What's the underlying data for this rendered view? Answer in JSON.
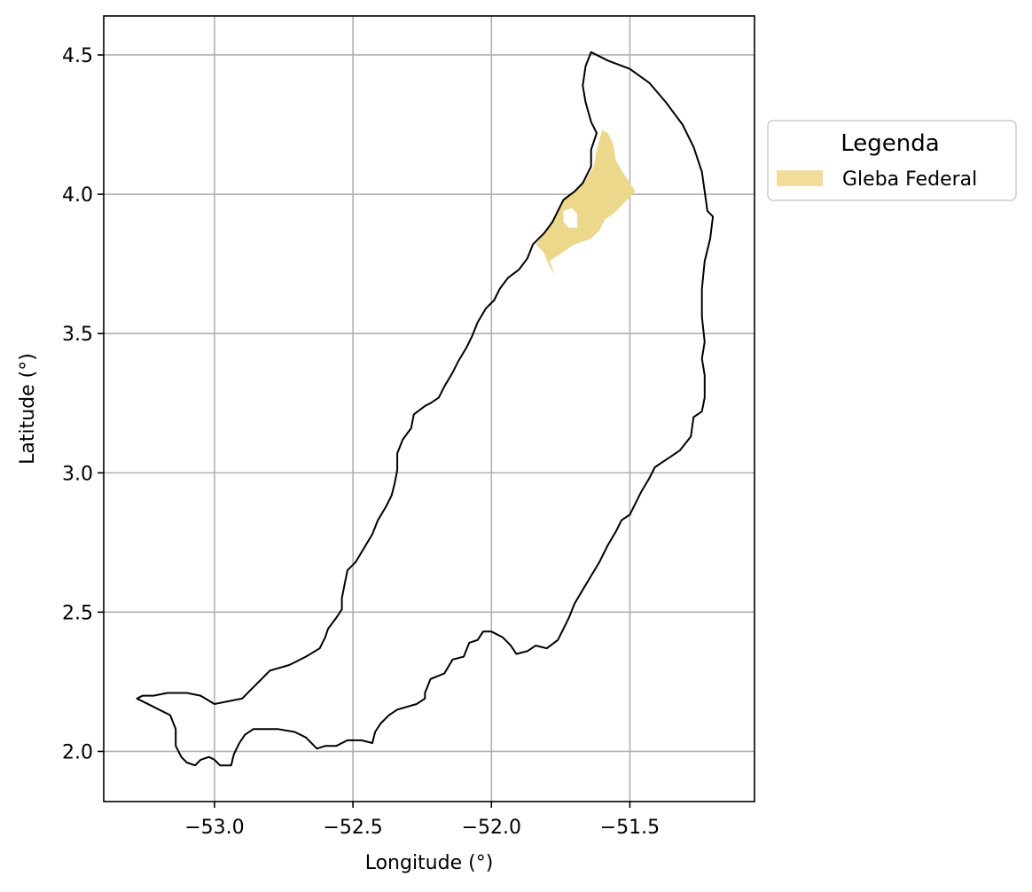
{
  "chart_data": {
    "type": "map",
    "xlabel": "Longitude (°)",
    "ylabel": "Latitude (°)",
    "xlim": [
      -53.4,
      -51.05
    ],
    "ylim": [
      1.82,
      4.64
    ],
    "xticks": [
      -53.0,
      -52.5,
      -52.0,
      -51.5
    ],
    "xtick_labels": [
      "−53.0",
      "−52.5",
      "−52.0",
      "−51.5"
    ],
    "yticks": [
      2.0,
      2.5,
      3.0,
      3.5,
      4.0,
      4.5
    ],
    "ytick_labels": [
      "2.0",
      "2.5",
      "3.0",
      "3.5",
      "4.0",
      "4.5"
    ],
    "grid": true,
    "legend": {
      "title": "Legenda",
      "placement": "outside-right-top",
      "entries": [
        {
          "label": "Gleba Federal",
          "color": "#f0dd9a"
        }
      ]
    },
    "layers": {
      "outline": {
        "stroke": "#000000",
        "fill": "none",
        "coords": [
          [
            -51.64,
            4.51
          ],
          [
            -51.58,
            4.48
          ],
          [
            -51.5,
            4.45
          ],
          [
            -51.43,
            4.4
          ],
          [
            -51.37,
            4.33
          ],
          [
            -51.31,
            4.25
          ],
          [
            -51.27,
            4.17
          ],
          [
            -51.24,
            4.08
          ],
          [
            -51.23,
            4.01
          ],
          [
            -51.22,
            3.94
          ],
          [
            -51.2,
            3.92
          ],
          [
            -51.21,
            3.84
          ],
          [
            -51.23,
            3.76
          ],
          [
            -51.24,
            3.66
          ],
          [
            -51.24,
            3.56
          ],
          [
            -51.23,
            3.47
          ],
          [
            -51.24,
            3.41
          ],
          [
            -51.23,
            3.35
          ],
          [
            -51.23,
            3.27
          ],
          [
            -51.24,
            3.22
          ],
          [
            -51.27,
            3.2
          ],
          [
            -51.28,
            3.13
          ],
          [
            -51.32,
            3.08
          ],
          [
            -51.35,
            3.06
          ],
          [
            -51.38,
            3.04
          ],
          [
            -51.41,
            3.02
          ],
          [
            -51.43,
            2.98
          ],
          [
            -51.46,
            2.93
          ],
          [
            -51.48,
            2.89
          ],
          [
            -51.5,
            2.85
          ],
          [
            -51.53,
            2.83
          ],
          [
            -51.55,
            2.79
          ],
          [
            -51.58,
            2.74
          ],
          [
            -51.61,
            2.68
          ],
          [
            -51.64,
            2.63
          ],
          [
            -51.67,
            2.58
          ],
          [
            -51.7,
            2.53
          ],
          [
            -51.72,
            2.48
          ],
          [
            -51.74,
            2.44
          ],
          [
            -51.76,
            2.4
          ],
          [
            -51.8,
            2.37
          ],
          [
            -51.84,
            2.38
          ],
          [
            -51.87,
            2.36
          ],
          [
            -51.91,
            2.35
          ],
          [
            -51.93,
            2.38
          ],
          [
            -51.96,
            2.41
          ],
          [
            -52.0,
            2.43
          ],
          [
            -52.03,
            2.43
          ],
          [
            -52.05,
            2.4
          ],
          [
            -52.08,
            2.39
          ],
          [
            -52.1,
            2.34
          ],
          [
            -52.14,
            2.33
          ],
          [
            -52.17,
            2.28
          ],
          [
            -52.22,
            2.26
          ],
          [
            -52.24,
            2.21
          ],
          [
            -52.24,
            2.19
          ],
          [
            -52.27,
            2.17
          ],
          [
            -52.34,
            2.15
          ],
          [
            -52.37,
            2.13
          ],
          [
            -52.4,
            2.1
          ],
          [
            -52.42,
            2.07
          ],
          [
            -52.43,
            2.03
          ],
          [
            -52.47,
            2.04
          ],
          [
            -52.52,
            2.04
          ],
          [
            -52.56,
            2.02
          ],
          [
            -52.6,
            2.02
          ],
          [
            -52.63,
            2.01
          ],
          [
            -52.67,
            2.05
          ],
          [
            -52.71,
            2.07
          ],
          [
            -52.77,
            2.08
          ],
          [
            -52.83,
            2.08
          ],
          [
            -52.86,
            2.08
          ],
          [
            -52.89,
            2.06
          ],
          [
            -52.91,
            2.03
          ],
          [
            -52.93,
            1.99
          ],
          [
            -52.94,
            1.95
          ],
          [
            -52.98,
            1.95
          ],
          [
            -53.0,
            1.97
          ],
          [
            -53.02,
            1.98
          ],
          [
            -53.05,
            1.97
          ],
          [
            -53.07,
            1.95
          ],
          [
            -53.1,
            1.96
          ],
          [
            -53.12,
            1.98
          ],
          [
            -53.14,
            2.02
          ],
          [
            -53.14,
            2.08
          ],
          [
            -53.16,
            2.13
          ],
          [
            -53.22,
            2.16
          ],
          [
            -53.28,
            2.19
          ],
          [
            -53.26,
            2.2
          ],
          [
            -53.22,
            2.2
          ],
          [
            -53.17,
            2.21
          ],
          [
            -53.1,
            2.21
          ],
          [
            -53.05,
            2.2
          ],
          [
            -53.0,
            2.17
          ],
          [
            -52.95,
            2.18
          ],
          [
            -52.9,
            2.19
          ],
          [
            -52.87,
            2.22
          ],
          [
            -52.83,
            2.26
          ],
          [
            -52.8,
            2.29
          ],
          [
            -52.73,
            2.31
          ],
          [
            -52.67,
            2.34
          ],
          [
            -52.62,
            2.37
          ],
          [
            -52.6,
            2.41
          ],
          [
            -52.59,
            2.44
          ],
          [
            -52.56,
            2.48
          ],
          [
            -52.54,
            2.51
          ],
          [
            -52.54,
            2.55
          ],
          [
            -52.53,
            2.6
          ],
          [
            -52.52,
            2.65
          ],
          [
            -52.49,
            2.68
          ],
          [
            -52.46,
            2.73
          ],
          [
            -52.43,
            2.78
          ],
          [
            -52.41,
            2.83
          ],
          [
            -52.38,
            2.88
          ],
          [
            -52.36,
            2.92
          ],
          [
            -52.35,
            2.96
          ],
          [
            -52.34,
            3.01
          ],
          [
            -52.34,
            3.07
          ],
          [
            -52.32,
            3.12
          ],
          [
            -52.29,
            3.16
          ],
          [
            -52.28,
            3.21
          ],
          [
            -52.24,
            3.24
          ],
          [
            -52.22,
            3.25
          ],
          [
            -52.19,
            3.27
          ],
          [
            -52.17,
            3.31
          ],
          [
            -52.14,
            3.36
          ],
          [
            -52.12,
            3.4
          ],
          [
            -52.09,
            3.45
          ],
          [
            -52.07,
            3.49
          ],
          [
            -52.05,
            3.54
          ],
          [
            -52.02,
            3.59
          ],
          [
            -51.99,
            3.62
          ],
          [
            -51.97,
            3.66
          ],
          [
            -51.94,
            3.7
          ],
          [
            -51.9,
            3.73
          ],
          [
            -51.87,
            3.77
          ],
          [
            -51.85,
            3.82
          ],
          [
            -51.81,
            3.86
          ],
          [
            -51.78,
            3.9
          ],
          [
            -51.76,
            3.94
          ],
          [
            -51.74,
            3.98
          ],
          [
            -51.7,
            4.01
          ],
          [
            -51.67,
            4.04
          ],
          [
            -51.64,
            4.1
          ],
          [
            -51.64,
            4.16
          ],
          [
            -51.62,
            4.22
          ],
          [
            -51.64,
            4.26
          ],
          [
            -51.66,
            4.33
          ],
          [
            -51.67,
            4.39
          ],
          [
            -51.66,
            4.46
          ],
          [
            -51.64,
            4.51
          ]
        ]
      },
      "gleba_federal": {
        "fill": "#ecd88a",
        "coords": [
          [
            -51.6,
            4.23
          ],
          [
            -51.58,
            4.22
          ],
          [
            -51.56,
            4.18
          ],
          [
            -51.55,
            4.12
          ],
          [
            -51.52,
            4.07
          ],
          [
            -51.48,
            4.01
          ],
          [
            -51.52,
            3.97
          ],
          [
            -51.56,
            3.93
          ],
          [
            -51.59,
            3.91
          ],
          [
            -51.61,
            3.87
          ],
          [
            -51.64,
            3.84
          ],
          [
            -51.7,
            3.82
          ],
          [
            -51.76,
            3.78
          ],
          [
            -51.79,
            3.76
          ],
          [
            -51.77,
            3.71
          ],
          [
            -51.79,
            3.74
          ],
          [
            -51.81,
            3.79
          ],
          [
            -51.84,
            3.82
          ],
          [
            -51.81,
            3.86
          ],
          [
            -51.78,
            3.9
          ],
          [
            -51.76,
            3.94
          ],
          [
            -51.74,
            3.98
          ],
          [
            -51.7,
            4.01
          ],
          [
            -51.66,
            4.05
          ],
          [
            -51.63,
            4.1
          ],
          [
            -51.62,
            4.16
          ],
          [
            -51.6,
            4.23
          ]
        ],
        "hole": [
          [
            -51.74,
            3.94
          ],
          [
            -51.71,
            3.95
          ],
          [
            -51.69,
            3.93
          ],
          [
            -51.69,
            3.88
          ],
          [
            -51.72,
            3.88
          ],
          [
            -51.74,
            3.9
          ],
          [
            -51.74,
            3.94
          ]
        ]
      }
    }
  }
}
